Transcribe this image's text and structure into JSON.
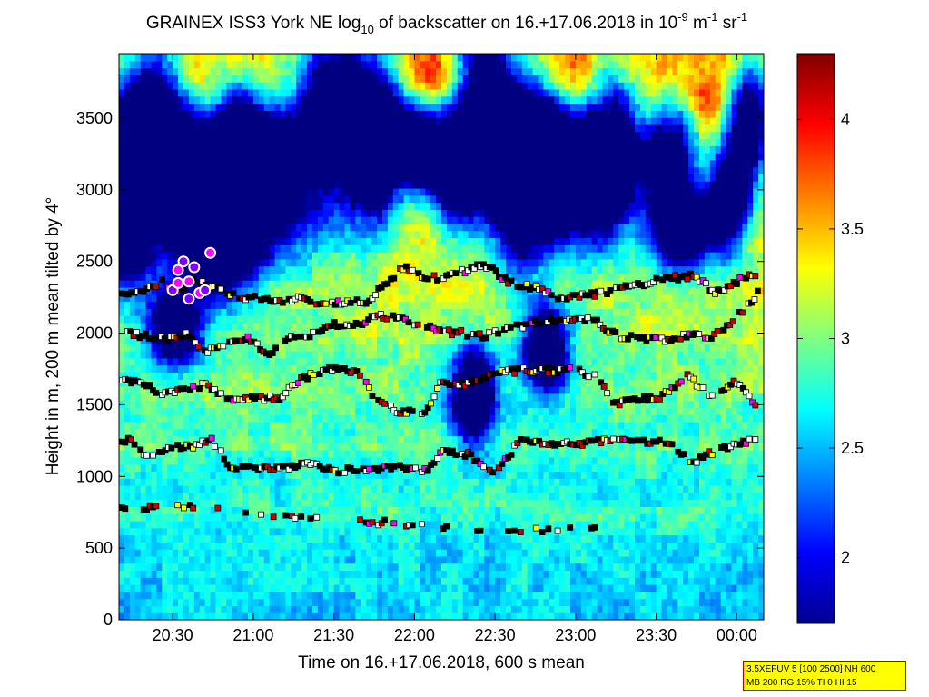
{
  "chart_data": {
    "type": "heatmap",
    "title_parts": {
      "a": "GRAINEX ISS3 York NE log",
      "sub1": "10",
      "b": " of backscatter on 16.+17.06.2018 in 10",
      "sup1": "-9",
      "c": " m",
      "sup2": "-1",
      "d": " sr",
      "sup3": "-1"
    },
    "xlabel": "Time on 16.+17.06.2018, 600 s mean",
    "ylabel": "Height in m, 200 m mean tilted by 4°",
    "xlim_minutes": [
      1210,
      1450
    ],
    "x_ticks": [
      {
        "min": 1230,
        "label": "20:30"
      },
      {
        "min": 1260,
        "label": "21:00"
      },
      {
        "min": 1290,
        "label": "21:30"
      },
      {
        "min": 1320,
        "label": "22:00"
      },
      {
        "min": 1350,
        "label": "22:30"
      },
      {
        "min": 1380,
        "label": "23:00"
      },
      {
        "min": 1410,
        "label": "23:30"
      },
      {
        "min": 1440,
        "label": "00:00"
      }
    ],
    "ylim": [
      0,
      3950
    ],
    "y_ticks": [
      0,
      500,
      1000,
      1500,
      2000,
      2500,
      3000,
      3500
    ],
    "colorbar": {
      "range": [
        1.7,
        4.3
      ],
      "ticks": [
        "2",
        "2.5",
        "3",
        "3.5",
        "4"
      ],
      "colormap": "jet"
    },
    "layers": [
      {
        "name": "layer_750",
        "points": [
          [
            1210,
            775
          ],
          [
            1214,
            760
          ],
          [
            1226,
            805
          ],
          [
            1232,
            790
          ],
          [
            1254,
            760
          ],
          [
            1258,
            730
          ],
          [
            1283,
            700
          ],
          [
            1318,
            670
          ],
          [
            1345,
            610
          ],
          [
            1388,
            650
          ]
        ]
      },
      {
        "name": "layer_1200",
        "points": [
          [
            1210,
            1230
          ],
          [
            1214,
            1250
          ],
          [
            1220,
            1130
          ],
          [
            1226,
            1180
          ],
          [
            1230,
            1210
          ],
          [
            1234,
            1200
          ],
          [
            1238,
            1210
          ],
          [
            1244,
            1270
          ],
          [
            1252,
            1050
          ],
          [
            1262,
            1060
          ],
          [
            1272,
            1060
          ],
          [
            1280,
            1090
          ],
          [
            1292,
            1040
          ],
          [
            1302,
            1050
          ],
          [
            1316,
            1060
          ],
          [
            1325,
            1040
          ],
          [
            1330,
            1180
          ],
          [
            1340,
            1150
          ],
          [
            1350,
            1020
          ],
          [
            1360,
            1270
          ],
          [
            1370,
            1220
          ],
          [
            1382,
            1230
          ],
          [
            1394,
            1260
          ],
          [
            1404,
            1240
          ],
          [
            1414,
            1240
          ],
          [
            1424,
            1100
          ],
          [
            1430,
            1160
          ],
          [
            1440,
            1220
          ],
          [
            1448,
            1280
          ]
        ]
      },
      {
        "name": "layer_1600",
        "points": [
          [
            1210,
            1660
          ],
          [
            1218,
            1660
          ],
          [
            1226,
            1580
          ],
          [
            1234,
            1600
          ],
          [
            1242,
            1640
          ],
          [
            1252,
            1520
          ],
          [
            1260,
            1540
          ],
          [
            1270,
            1550
          ],
          [
            1278,
            1680
          ],
          [
            1286,
            1740
          ],
          [
            1292,
            1760
          ],
          [
            1300,
            1720
          ],
          [
            1306,
            1520
          ],
          [
            1314,
            1450
          ],
          [
            1324,
            1450
          ],
          [
            1330,
            1650
          ],
          [
            1340,
            1650
          ],
          [
            1350,
            1720
          ],
          [
            1360,
            1740
          ],
          [
            1370,
            1740
          ],
          [
            1380,
            1740
          ],
          [
            1388,
            1690
          ],
          [
            1394,
            1500
          ],
          [
            1404,
            1540
          ],
          [
            1412,
            1560
          ],
          [
            1422,
            1700
          ],
          [
            1430,
            1560
          ],
          [
            1440,
            1660
          ],
          [
            1448,
            1480
          ]
        ]
      },
      {
        "name": "layer_2000",
        "points": [
          [
            1212,
            2000
          ],
          [
            1220,
            1980
          ],
          [
            1228,
            1960
          ],
          [
            1236,
            1990
          ],
          [
            1242,
            1860
          ],
          [
            1250,
            1930
          ],
          [
            1258,
            1960
          ],
          [
            1266,
            1860
          ],
          [
            1274,
            1960
          ],
          [
            1282,
            1990
          ],
          [
            1290,
            2060
          ],
          [
            1298,
            2050
          ],
          [
            1306,
            2120
          ],
          [
            1314,
            2100
          ],
          [
            1322,
            2060
          ],
          [
            1330,
            2010
          ],
          [
            1338,
            2000
          ],
          [
            1346,
            1980
          ],
          [
            1354,
            2030
          ],
          [
            1362,
            2060
          ],
          [
            1370,
            2090
          ],
          [
            1378,
            2080
          ],
          [
            1386,
            2100
          ],
          [
            1396,
            1980
          ],
          [
            1406,
            1960
          ],
          [
            1416,
            1960
          ],
          [
            1424,
            1990
          ],
          [
            1432,
            1980
          ],
          [
            1440,
            2120
          ],
          [
            1448,
            2280
          ]
        ]
      },
      {
        "name": "layer_2300",
        "points": [
          [
            1210,
            2290
          ],
          [
            1218,
            2280
          ],
          [
            1226,
            2360
          ],
          [
            1232,
            2300
          ],
          [
            1238,
            2380
          ],
          [
            1246,
            2320
          ],
          [
            1254,
            2260
          ],
          [
            1262,
            2240
          ],
          [
            1270,
            2220
          ],
          [
            1278,
            2250
          ],
          [
            1284,
            2200
          ],
          [
            1292,
            2210
          ],
          [
            1302,
            2220
          ],
          [
            1316,
            2460
          ],
          [
            1322,
            2400
          ],
          [
            1330,
            2380
          ],
          [
            1346,
            2480
          ],
          [
            1356,
            2350
          ],
          [
            1366,
            2310
          ],
          [
            1374,
            2240
          ],
          [
            1384,
            2260
          ],
          [
            1394,
            2300
          ],
          [
            1404,
            2340
          ],
          [
            1414,
            2380
          ],
          [
            1424,
            2400
          ],
          [
            1432,
            2280
          ],
          [
            1440,
            2360
          ],
          [
            1448,
            2420
          ]
        ]
      },
      {
        "name": "hot_cluster",
        "points": [
          [
            1230,
            2300
          ],
          [
            1232,
            2440
          ],
          [
            1234,
            2500
          ],
          [
            1236,
            2360
          ],
          [
            1238,
            2460
          ],
          [
            1240,
            2280
          ],
          [
            1242,
            2300
          ],
          [
            1244,
            2560
          ],
          [
            1236,
            2240
          ],
          [
            1232,
            2350
          ]
        ]
      }
    ],
    "field_params": {
      "base": [
        [
          0,
          2.55
        ],
        [
          600,
          2.65
        ],
        [
          1100,
          2.75
        ],
        [
          1500,
          2.85
        ],
        [
          2000,
          3.0
        ],
        [
          2300,
          3.15
        ],
        [
          2600,
          3.3
        ],
        [
          3200,
          3.45
        ],
        [
          3950,
          3.6
        ]
      ],
      "blue_blobs": [
        [
          1217,
          3300,
          10,
          420
        ],
        [
          1212,
          2700,
          6,
          250
        ],
        [
          1225,
          3450,
          9,
          350
        ],
        [
          1242,
          2700,
          14,
          280
        ],
        [
          1249,
          2880,
          7,
          350
        ],
        [
          1256,
          3300,
          10,
          350
        ],
        [
          1266,
          3050,
          10,
          300
        ],
        [
          1286,
          3450,
          9,
          500
        ],
        [
          1305,
          3150,
          7,
          300
        ],
        [
          1304,
          3600,
          9,
          300
        ],
        [
          1322,
          3280,
          7,
          230
        ],
        [
          1335,
          3100,
          7,
          250
        ],
        [
          1345,
          3700,
          8,
          450
        ],
        [
          1357,
          3300,
          10,
          400
        ],
        [
          1360,
          2950,
          7,
          320
        ],
        [
          1368,
          3250,
          7,
          300
        ],
        [
          1382,
          3050,
          12,
          320
        ],
        [
          1394,
          3330,
          8,
          380
        ],
        [
          1415,
          3250,
          7,
          280
        ],
        [
          1420,
          2760,
          9,
          230
        ],
        [
          1437,
          2950,
          6,
          250
        ],
        [
          1444,
          3500,
          6,
          280
        ],
        [
          1231,
          2050,
          7,
          180
        ],
        [
          1342,
          1580,
          6,
          220
        ],
        [
          1369,
          1900,
          6,
          220
        ]
      ],
      "warm_blobs": [
        [
          1216,
          3820,
          9,
          120
        ],
        [
          1234,
          3740,
          10,
          140
        ],
        [
          1267,
          3650,
          12,
          160
        ],
        [
          1307,
          3680,
          8,
          150
        ],
        [
          1327,
          3780,
          8,
          150
        ],
        [
          1345,
          3780,
          14,
          140
        ],
        [
          1378,
          3750,
          14,
          150
        ],
        [
          1405,
          3560,
          10,
          180
        ],
        [
          1432,
          3620,
          8,
          160
        ],
        [
          1280,
          3000,
          9,
          150
        ],
        [
          1322,
          2900,
          12,
          150
        ],
        [
          1360,
          2700,
          8,
          140
        ],
        [
          1396,
          2900,
          12,
          150
        ],
        [
          1427,
          3050,
          7,
          140
        ],
        [
          1230,
          2600,
          8,
          140
        ]
      ]
    }
  },
  "infobox": {
    "line1": "3.5XEFUV 5 [100 2500] NH 600",
    "line2": "MB 200 RG 15% TI 0 HI 15"
  }
}
